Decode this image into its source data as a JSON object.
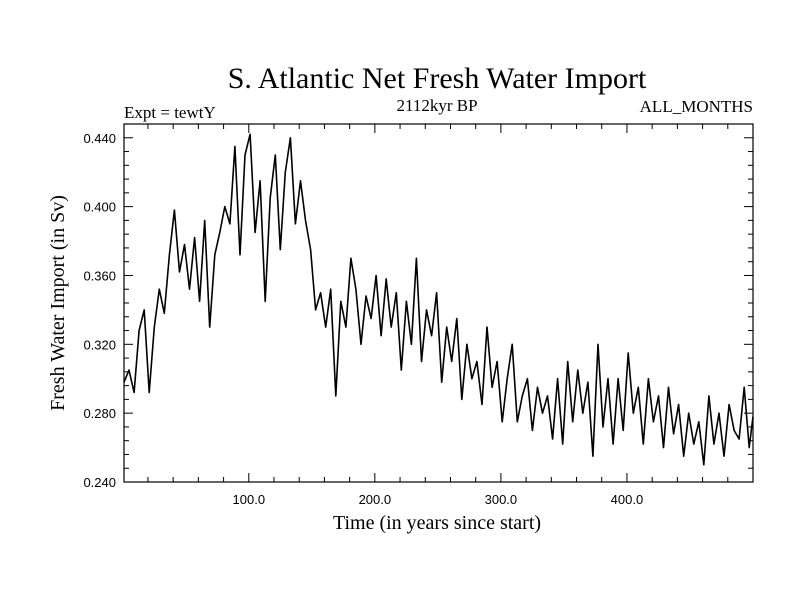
{
  "chart_data": {
    "type": "line",
    "title": "S. Atlantic Net Fresh Water Import",
    "subtitle_left": "Expt = tewtY",
    "subtitle_center": "2112kyr BP",
    "subtitle_right": "ALL_MONTHS",
    "xlabel": "Time (in years since start)",
    "ylabel": "Fresh Water Import (in Sv)",
    "xlim": [
      1,
      500
    ],
    "ylim": [
      0.24,
      0.448
    ],
    "x_ticks": [
      100,
      200,
      300,
      400
    ],
    "x_tick_labels": [
      "100.0",
      "200.0",
      "300.0",
      "400.0"
    ],
    "y_ticks": [
      0.24,
      0.28,
      0.32,
      0.36,
      0.4,
      0.44
    ],
    "y_tick_labels": [
      "0.240",
      "0.280",
      "0.320",
      "0.360",
      "0.400",
      "0.440"
    ],
    "grid": false,
    "series": [
      {
        "name": "Net Fresh Water Import",
        "color": "#000000",
        "x": [
          1,
          5,
          9,
          13,
          17,
          21,
          25,
          29,
          33,
          37,
          41,
          45,
          49,
          53,
          57,
          61,
          65,
          69,
          73,
          77,
          81,
          85,
          89,
          93,
          97,
          101,
          105,
          109,
          113,
          117,
          121,
          125,
          129,
          133,
          137,
          141,
          145,
          149,
          153,
          157,
          161,
          165,
          169,
          173,
          177,
          181,
          185,
          189,
          193,
          197,
          201,
          205,
          209,
          213,
          217,
          221,
          225,
          229,
          233,
          237,
          241,
          245,
          249,
          253,
          257,
          261,
          265,
          269,
          273,
          277,
          281,
          285,
          289,
          293,
          297,
          301,
          305,
          309,
          313,
          317,
          321,
          325,
          329,
          333,
          337,
          341,
          345,
          349,
          353,
          357,
          361,
          365,
          369,
          373,
          377,
          381,
          385,
          389,
          393,
          397,
          401,
          405,
          409,
          413,
          417,
          421,
          425,
          429,
          433,
          437,
          441,
          445,
          449,
          453,
          457,
          461,
          465,
          469,
          473,
          477,
          481,
          485,
          489,
          493,
          497,
          500
        ],
        "values": [
          0.298,
          0.305,
          0.292,
          0.328,
          0.34,
          0.292,
          0.33,
          0.352,
          0.338,
          0.372,
          0.398,
          0.362,
          0.378,
          0.352,
          0.382,
          0.345,
          0.392,
          0.33,
          0.372,
          0.385,
          0.4,
          0.39,
          0.435,
          0.372,
          0.43,
          0.442,
          0.385,
          0.415,
          0.345,
          0.405,
          0.43,
          0.375,
          0.42,
          0.44,
          0.39,
          0.415,
          0.392,
          0.375,
          0.34,
          0.35,
          0.33,
          0.352,
          0.29,
          0.345,
          0.33,
          0.37,
          0.352,
          0.32,
          0.348,
          0.335,
          0.36,
          0.325,
          0.358,
          0.33,
          0.35,
          0.305,
          0.345,
          0.32,
          0.37,
          0.31,
          0.34,
          0.325,
          0.35,
          0.298,
          0.33,
          0.31,
          0.335,
          0.288,
          0.32,
          0.3,
          0.31,
          0.285,
          0.33,
          0.295,
          0.31,
          0.275,
          0.3,
          0.32,
          0.275,
          0.29,
          0.3,
          0.27,
          0.295,
          0.28,
          0.29,
          0.265,
          0.3,
          0.262,
          0.31,
          0.275,
          0.305,
          0.28,
          0.298,
          0.255,
          0.32,
          0.272,
          0.3,
          0.262,
          0.3,
          0.27,
          0.315,
          0.28,
          0.295,
          0.262,
          0.3,
          0.275,
          0.29,
          0.26,
          0.295,
          0.268,
          0.285,
          0.255,
          0.28,
          0.262,
          0.275,
          0.25,
          0.29,
          0.262,
          0.28,
          0.255,
          0.285,
          0.27,
          0.265,
          0.295,
          0.26,
          0.278
        ]
      }
    ]
  }
}
